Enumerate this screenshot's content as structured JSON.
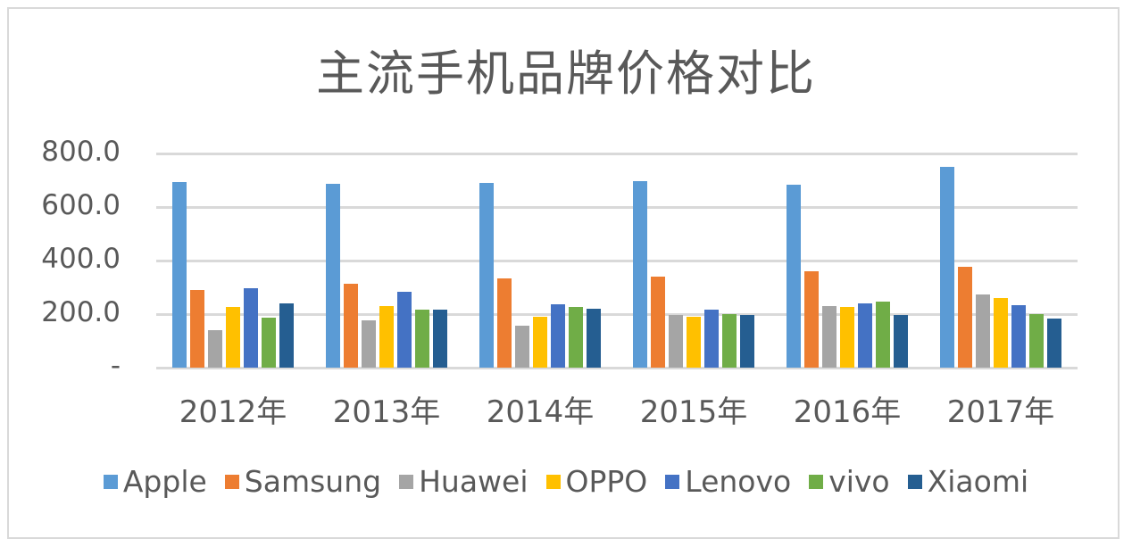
{
  "chart_data": {
    "type": "bar",
    "title": "主流手机品牌价格对比",
    "xlabel": "",
    "ylabel": "",
    "ylim": [
      0,
      800
    ],
    "yticks": [
      "-",
      "200.0",
      "400.0",
      "600.0",
      "800.0"
    ],
    "grid": true,
    "legend_position": "bottom",
    "categories": [
      "2012年",
      "2013年",
      "2014年",
      "2015年",
      "2016年",
      "2017年"
    ],
    "series": [
      {
        "name": "Apple",
        "color": "#5b9bd5",
        "values": [
          693,
          686,
          690,
          697,
          683,
          750
        ]
      },
      {
        "name": "Samsung",
        "color": "#ed7d31",
        "values": [
          290,
          313,
          333,
          340,
          360,
          377
        ]
      },
      {
        "name": "Huawei",
        "color": "#a5a5a5",
        "values": [
          140,
          177,
          157,
          198,
          230,
          273
        ]
      },
      {
        "name": "OPPO",
        "color": "#ffc000",
        "values": [
          227,
          230,
          191,
          190,
          227,
          260
        ]
      },
      {
        "name": "Lenovo",
        "color": "#4472c4",
        "values": [
          297,
          283,
          237,
          216,
          240,
          233
        ]
      },
      {
        "name": "vivo",
        "color": "#70ad47",
        "values": [
          187,
          216,
          228,
          200,
          247,
          200
        ]
      },
      {
        "name": "Xiaomi",
        "color": "#255e91",
        "values": [
          240,
          216,
          220,
          198,
          198,
          183
        ]
      }
    ]
  }
}
